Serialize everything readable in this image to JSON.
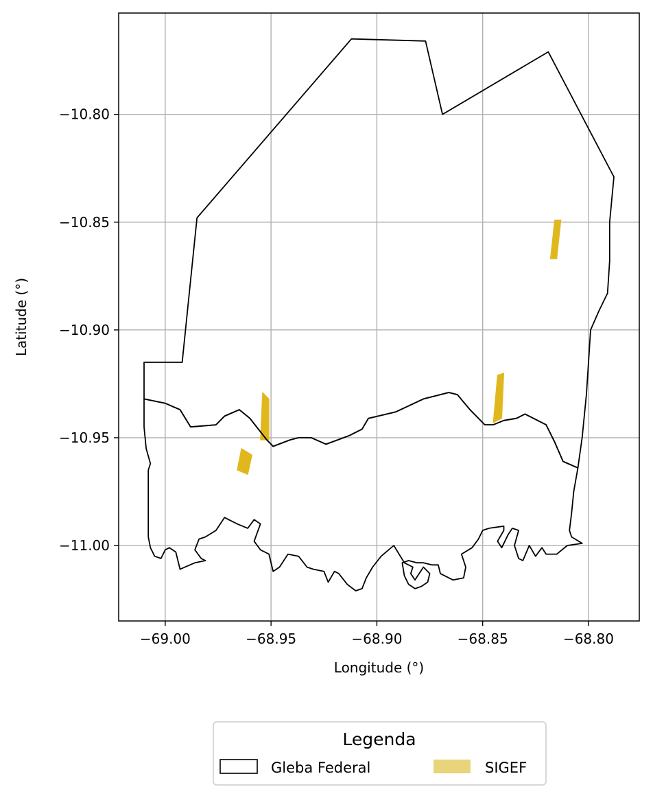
{
  "chart_data": {
    "type": "map",
    "xlabel": "Longitude (°)",
    "ylabel": "Latitude (°)",
    "xlim": [
      -69.022,
      -68.776
    ],
    "ylim": [
      -11.035,
      -10.753
    ],
    "grid": true,
    "x_ticks": [
      -69.0,
      -68.95,
      -68.9,
      -68.85,
      -68.8
    ],
    "y_ticks": [
      -10.8,
      -10.85,
      -10.9,
      -10.95,
      -11.0
    ],
    "x_tick_labels": [
      "−69.00",
      "−68.95",
      "−68.90",
      "−68.85",
      "−68.80"
    ],
    "y_tick_labels": [
      "−10.80",
      "−10.85",
      "−10.90",
      "−10.95",
      "−11.00"
    ],
    "legend": {
      "title": "Legenda",
      "placement": "bottom-center",
      "entries": [
        {
          "label": "Gleba Federal",
          "style": "outline",
          "color": "#000000"
        },
        {
          "label": "SIGEF",
          "style": "fill",
          "color": "#e8d47a"
        }
      ]
    },
    "series": [
      {
        "name": "Gleba Federal",
        "color": "#000000",
        "polygons": [
          [
            [
              -69.01,
              -10.915
            ],
            [
              -68.992,
              -10.915
            ],
            [
              -68.985,
              -10.848
            ],
            [
              -68.912,
              -10.765
            ],
            [
              -68.877,
              -10.766
            ],
            [
              -68.869,
              -10.8
            ],
            [
              -68.819,
              -10.771
            ],
            [
              -68.788,
              -10.829
            ],
            [
              -68.79,
              -10.85
            ],
            [
              -68.79,
              -10.868
            ],
            [
              -68.791,
              -10.883
            ],
            [
              -68.795,
              -10.891
            ],
            [
              -68.799,
              -10.9
            ],
            [
              -68.8,
              -10.915
            ],
            [
              -68.801,
              -10.93
            ],
            [
              -68.802,
              -10.94
            ],
            [
              -68.803,
              -10.95
            ],
            [
              -68.805,
              -10.964
            ],
            [
              -68.812,
              -10.961
            ],
            [
              -68.816,
              -10.952
            ],
            [
              -68.82,
              -10.944
            ],
            [
              -68.826,
              -10.941
            ],
            [
              -68.83,
              -10.939
            ],
            [
              -68.834,
              -10.941
            ],
            [
              -68.84,
              -10.942
            ],
            [
              -68.845,
              -10.944
            ],
            [
              -68.849,
              -10.944
            ],
            [
              -68.856,
              -10.937
            ],
            [
              -68.862,
              -10.93
            ],
            [
              -68.866,
              -10.929
            ],
            [
              -68.878,
              -10.932
            ],
            [
              -68.891,
              -10.938
            ],
            [
              -68.904,
              -10.941
            ],
            [
              -68.907,
              -10.946
            ],
            [
              -68.913,
              -10.949
            ],
            [
              -68.924,
              -10.953
            ],
            [
              -68.931,
              -10.95
            ],
            [
              -68.937,
              -10.95
            ],
            [
              -68.941,
              -10.951
            ],
            [
              -68.949,
              -10.954
            ],
            [
              -68.952,
              -10.951
            ],
            [
              -68.96,
              -10.941
            ],
            [
              -68.965,
              -10.937
            ],
            [
              -68.972,
              -10.94
            ],
            [
              -68.976,
              -10.944
            ],
            [
              -68.988,
              -10.945
            ],
            [
              -68.993,
              -10.937
            ],
            [
              -69.0,
              -10.934
            ],
            [
              -69.01,
              -10.932
            ],
            [
              -69.01,
              -10.915
            ]
          ],
          [
            [
              -69.01,
              -10.932
            ],
            [
              -69.0,
              -10.934
            ],
            [
              -68.993,
              -10.937
            ],
            [
              -68.988,
              -10.945
            ],
            [
              -68.976,
              -10.944
            ],
            [
              -68.972,
              -10.94
            ],
            [
              -68.965,
              -10.937
            ],
            [
              -68.96,
              -10.941
            ],
            [
              -68.952,
              -10.951
            ],
            [
              -68.949,
              -10.954
            ],
            [
              -68.941,
              -10.951
            ],
            [
              -68.937,
              -10.95
            ],
            [
              -68.931,
              -10.95
            ],
            [
              -68.924,
              -10.953
            ],
            [
              -68.913,
              -10.949
            ],
            [
              -68.907,
              -10.946
            ],
            [
              -68.904,
              -10.941
            ],
            [
              -68.891,
              -10.938
            ],
            [
              -68.878,
              -10.932
            ],
            [
              -68.866,
              -10.929
            ],
            [
              -68.862,
              -10.93
            ],
            [
              -68.856,
              -10.937
            ],
            [
              -68.849,
              -10.944
            ],
            [
              -68.845,
              -10.944
            ],
            [
              -68.84,
              -10.942
            ],
            [
              -68.834,
              -10.941
            ],
            [
              -68.83,
              -10.939
            ],
            [
              -68.826,
              -10.941
            ],
            [
              -68.82,
              -10.944
            ],
            [
              -68.816,
              -10.952
            ],
            [
              -68.812,
              -10.961
            ],
            [
              -68.805,
              -10.964
            ],
            [
              -68.807,
              -10.975
            ],
            [
              -68.808,
              -10.985
            ],
            [
              -68.809,
              -10.993
            ],
            [
              -68.808,
              -10.996
            ],
            [
              -68.803,
              -10.999
            ],
            [
              -68.81,
              -11.0
            ],
            [
              -68.815,
              -11.004
            ],
            [
              -68.82,
              -11.004
            ],
            [
              -68.822,
              -11.001
            ],
            [
              -68.825,
              -11.005
            ],
            [
              -68.828,
              -11.0
            ],
            [
              -68.831,
              -11.007
            ],
            [
              -68.833,
              -11.006
            ],
            [
              -68.835,
              -11.0
            ],
            [
              -68.833,
              -10.993
            ],
            [
              -68.836,
              -10.992
            ],
            [
              -68.838,
              -10.995
            ],
            [
              -68.841,
              -11.001
            ],
            [
              -68.843,
              -10.998
            ],
            [
              -68.84,
              -10.993
            ],
            [
              -68.84,
              -10.991
            ],
            [
              -68.847,
              -10.992
            ],
            [
              -68.85,
              -10.993
            ],
            [
              -68.852,
              -10.997
            ],
            [
              -68.855,
              -11.001
            ],
            [
              -68.86,
              -11.004
            ],
            [
              -68.858,
              -11.01
            ],
            [
              -68.859,
              -11.015
            ],
            [
              -68.864,
              -11.016
            ],
            [
              -68.87,
              -11.013
            ],
            [
              -68.871,
              -11.009
            ],
            [
              -68.874,
              -11.009
            ],
            [
              -68.878,
              -11.008
            ],
            [
              -68.881,
              -11.008
            ],
            [
              -68.885,
              -11.007
            ],
            [
              -68.888,
              -11.008
            ],
            [
              -68.887,
              -11.014
            ],
            [
              -68.885,
              -11.018
            ],
            [
              -68.882,
              -11.02
            ],
            [
              -68.879,
              -11.019
            ],
            [
              -68.876,
              -11.017
            ],
            [
              -68.875,
              -11.013
            ],
            [
              -68.878,
              -11.01
            ],
            [
              -68.88,
              -11.013
            ],
            [
              -68.882,
              -11.016
            ],
            [
              -68.884,
              -11.013
            ],
            [
              -68.883,
              -11.01
            ],
            [
              -68.887,
              -11.008
            ],
            [
              -68.892,
              -11.0
            ],
            [
              -68.898,
              -11.005
            ],
            [
              -68.902,
              -11.01
            ],
            [
              -68.905,
              -11.015
            ],
            [
              -68.907,
              -11.02
            ],
            [
              -68.91,
              -11.021
            ],
            [
              -68.914,
              -11.018
            ],
            [
              -68.918,
              -11.013
            ],
            [
              -68.92,
              -11.012
            ],
            [
              -68.923,
              -11.017
            ],
            [
              -68.925,
              -11.012
            ],
            [
              -68.93,
              -11.011
            ],
            [
              -68.933,
              -11.01
            ],
            [
              -68.937,
              -11.005
            ],
            [
              -68.942,
              -11.004
            ],
            [
              -68.946,
              -11.01
            ],
            [
              -68.949,
              -11.012
            ],
            [
              -68.951,
              -11.004
            ],
            [
              -68.955,
              -11.002
            ],
            [
              -68.958,
              -10.998
            ],
            [
              -68.955,
              -10.99
            ],
            [
              -68.958,
              -10.988
            ],
            [
              -68.961,
              -10.992
            ],
            [
              -68.966,
              -10.99
            ],
            [
              -68.972,
              -10.987
            ],
            [
              -68.976,
              -10.993
            ],
            [
              -68.981,
              -10.996
            ],
            [
              -68.984,
              -10.997
            ],
            [
              -68.986,
              -11.002
            ],
            [
              -68.983,
              -11.006
            ],
            [
              -68.981,
              -11.007
            ],
            [
              -68.986,
              -11.008
            ],
            [
              -68.993,
              -11.011
            ],
            [
              -68.995,
              -11.003
            ],
            [
              -68.998,
              -11.001
            ],
            [
              -69.0,
              -11.002
            ],
            [
              -69.002,
              -11.006
            ],
            [
              -69.005,
              -11.005
            ],
            [
              -69.007,
              -11.001
            ],
            [
              -69.008,
              -10.996
            ],
            [
              -69.008,
              -10.98
            ],
            [
              -69.008,
              -10.965
            ],
            [
              -69.007,
              -10.962
            ],
            [
              -69.009,
              -10.955
            ],
            [
              -69.01,
              -10.945
            ],
            [
              -69.01,
              -10.932
            ]
          ]
        ]
      },
      {
        "name": "SIGEF",
        "color": "#e0b81e",
        "polygons": [
          [
            [
              -68.816,
              -10.849
            ],
            [
              -68.813,
              -10.849
            ],
            [
              -68.815,
              -10.867
            ],
            [
              -68.818,
              -10.867
            ]
          ],
          [
            [
              -68.954,
              -10.929
            ],
            [
              -68.951,
              -10.932
            ],
            [
              -68.951,
              -10.951
            ],
            [
              -68.955,
              -10.951
            ]
          ],
          [
            [
              -68.964,
              -10.955
            ],
            [
              -68.959,
              -10.958
            ],
            [
              -68.961,
              -10.967
            ],
            [
              -68.966,
              -10.965
            ]
          ],
          [
            [
              -68.843,
              -10.921
            ],
            [
              -68.84,
              -10.92
            ],
            [
              -68.841,
              -10.941
            ],
            [
              -68.845,
              -10.943
            ]
          ]
        ]
      }
    ]
  }
}
